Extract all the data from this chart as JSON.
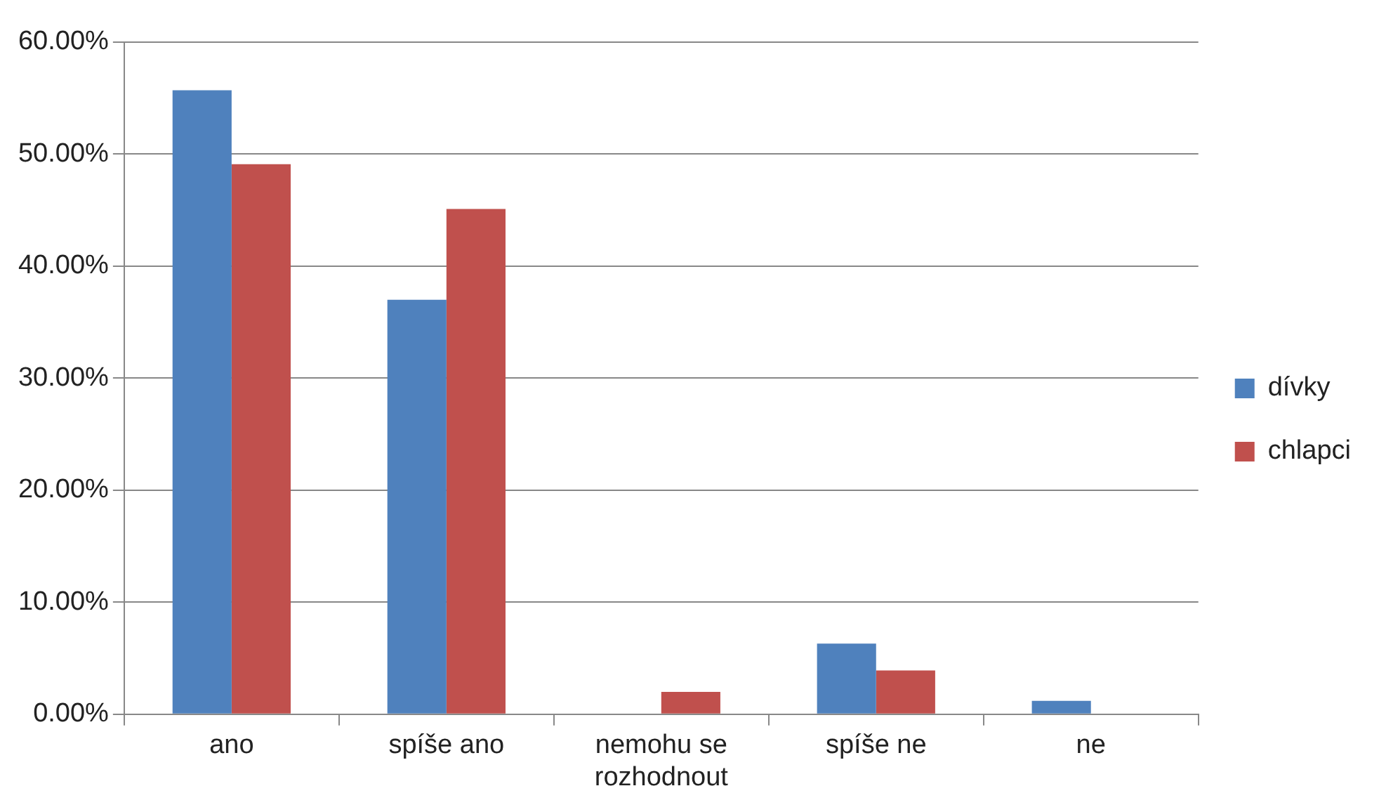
{
  "chart_data": {
    "type": "bar",
    "categories": [
      "ano",
      "spíše ano",
      "nemohu se rozhodnout",
      "spíše ne",
      "ne"
    ],
    "series": [
      {
        "name": "dívky",
        "color": "#4f81bd",
        "values": [
          55.7,
          37.0,
          0,
          6.3,
          1.2
        ]
      },
      {
        "name": "chlapci",
        "color": "#c0504d",
        "values": [
          49.1,
          45.1,
          2.0,
          3.9,
          0
        ]
      }
    ],
    "ylim": [
      0,
      60
    ],
    "yticks": [
      {
        "value": 0,
        "label": "0.00%"
      },
      {
        "value": 10,
        "label": "10.00%"
      },
      {
        "value": 20,
        "label": "20.00%"
      },
      {
        "value": 30,
        "label": "30.00%"
      },
      {
        "value": 40,
        "label": "40.00%"
      },
      {
        "value": 50,
        "label": "50.00%"
      },
      {
        "value": 60,
        "label": "60.00%"
      }
    ],
    "grid": "y",
    "legend": "right"
  }
}
